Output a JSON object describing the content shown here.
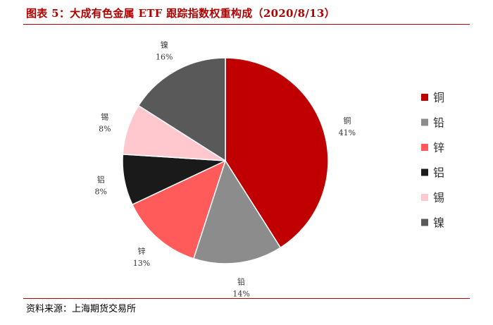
{
  "header": {
    "title": "图表 5：大成有色金属 ETF 跟踪指数权重构成（2020/8/13）"
  },
  "footer": {
    "source": "资料来源：上海期货交易所"
  },
  "chart_data": {
    "type": "pie",
    "title": "",
    "categories": [
      "铜",
      "铅",
      "锌",
      "铝",
      "锡",
      "镍"
    ],
    "values": [
      41,
      14,
      13,
      8,
      8,
      16
    ],
    "labels": [
      "41%",
      "14%",
      "13%",
      "8%",
      "8%",
      "16%"
    ],
    "colors": [
      "#c00000",
      "#8c8c8c",
      "#ff5b5b",
      "#1a1a1a",
      "#ffc7ce",
      "#595959"
    ],
    "legend_position": "right"
  }
}
